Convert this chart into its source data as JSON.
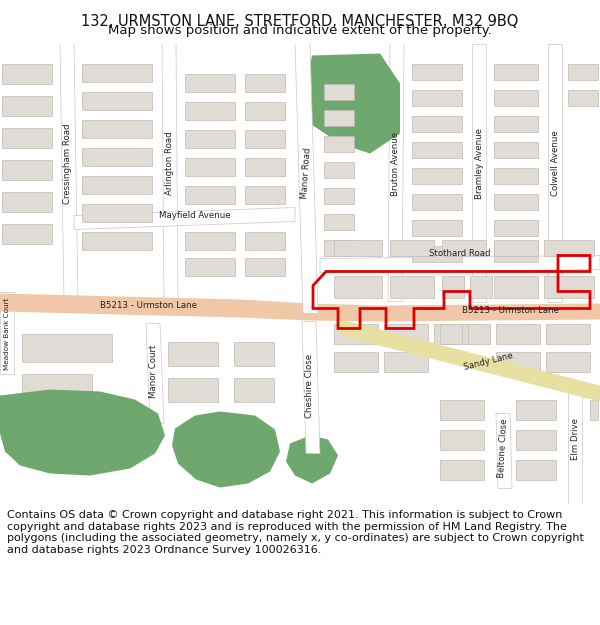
{
  "title_line1": "132, URMSTON LANE, STRETFORD, MANCHESTER, M32 9BQ",
  "title_line2": "Map shows position and indicative extent of the property.",
  "footer_text": "Contains OS data © Crown copyright and database right 2021. This information is subject to Crown copyright and database rights 2023 and is reproduced with the permission of HM Land Registry. The polygons (including the associated geometry, namely x, y co-ordinates) are subject to Crown copyright and database rights 2023 Ordnance Survey 100026316.",
  "bg_color": "#ffffff",
  "map_bg": "#f2efec",
  "road_color_main": "#f0c8a8",
  "road_color_minor": "#ffffff",
  "road_outline": "#c8c8c8",
  "building_fill": "#e0dbd4",
  "building_outline": "#c0bbb4",
  "green_fill": "#6ea86e",
  "highlight_outline": "#dd0000",
  "sandy_lane_color": "#e8e0a0",
  "road_label_color": "#222222",
  "title_fontsize": 10.5,
  "subtitle_fontsize": 9.5,
  "footer_fontsize": 8.0
}
